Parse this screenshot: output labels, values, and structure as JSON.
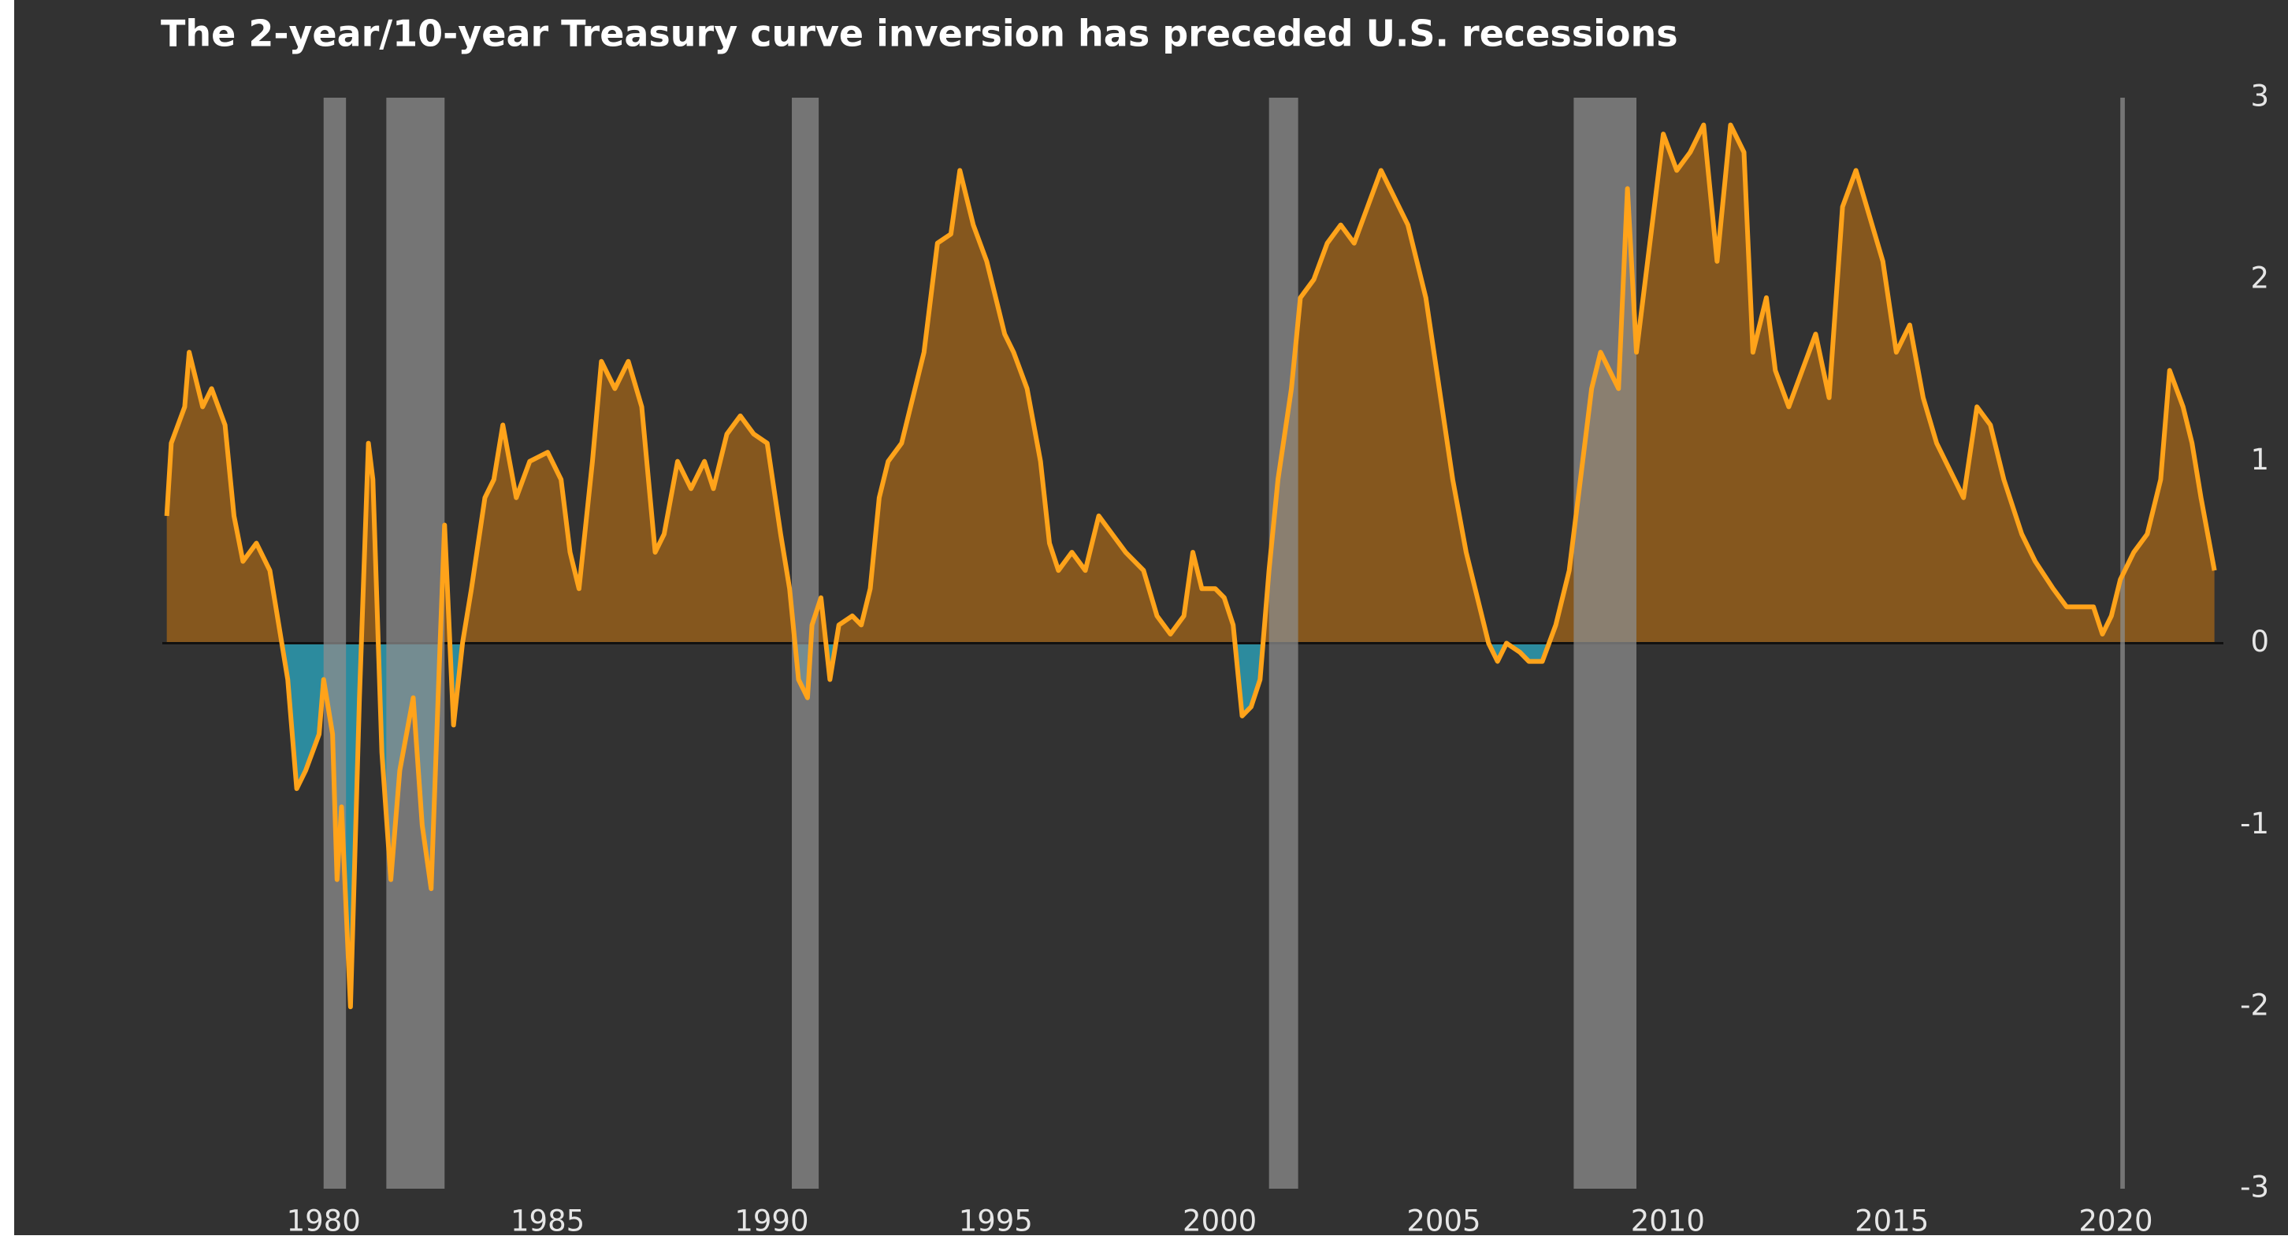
{
  "chart_data": {
    "type": "line",
    "title": "The 2-year/10-year Treasury curve inversion has preceded U.S. recessions",
    "x": [
      1976.5,
      1976.6,
      1976.9,
      1977.0,
      1977.3,
      1977.5,
      1977.8,
      1978.0,
      1978.2,
      1978.5,
      1978.8,
      1979.0,
      1979.2,
      1979.4,
      1979.6,
      1979.9,
      1980.0,
      1980.2,
      1980.3,
      1980.4,
      1980.6,
      1980.8,
      1981.0,
      1981.1,
      1981.3,
      1981.5,
      1981.7,
      1982.0,
      1982.2,
      1982.4,
      1982.6,
      1982.7,
      1982.9,
      1983.1,
      1983.3,
      1983.6,
      1983.8,
      1984.0,
      1984.3,
      1984.6,
      1985.0,
      1985.3,
      1985.5,
      1985.7,
      1986.0,
      1986.2,
      1986.5,
      1986.8,
      1987.1,
      1987.4,
      1987.6,
      1987.9,
      1988.2,
      1988.5,
      1988.7,
      1989.0,
      1989.3,
      1989.6,
      1989.9,
      1990.2,
      1990.4,
      1990.6,
      1990.8,
      1990.9,
      1991.1,
      1991.3,
      1991.5,
      1991.8,
      1992.0,
      1992.2,
      1992.4,
      1992.6,
      1992.9,
      1993.2,
      1993.4,
      1993.7,
      1994.0,
      1994.2,
      1994.5,
      1994.8,
      1995.2,
      1995.4,
      1995.7,
      1996.0,
      1996.2,
      1996.4,
      1996.7,
      1997.0,
      1997.3,
      1997.6,
      1997.9,
      1998.3,
      1998.6,
      1998.9,
      1999.2,
      1999.4,
      1999.6,
      1999.9,
      2000.1,
      2000.3,
      2000.5,
      2000.7,
      2000.9,
      2001.1,
      2001.3,
      2001.6,
      2001.8,
      2002.1,
      2002.4,
      2002.7,
      2003.0,
      2003.3,
      2003.6,
      2003.9,
      2004.2,
      2004.6,
      2004.9,
      2005.2,
      2005.5,
      2005.8,
      2006.0,
      2006.2,
      2006.4,
      2006.7,
      2006.9,
      2007.2,
      2007.5,
      2007.8,
      2008.1,
      2008.3,
      2008.5,
      2008.7,
      2008.9,
      2009.1,
      2009.3,
      2009.6,
      2009.9,
      2010.2,
      2010.5,
      2010.8,
      2011.1,
      2011.4,
      2011.7,
      2011.9,
      2012.2,
      2012.4,
      2012.7,
      2013.0,
      2013.3,
      2013.6,
      2013.9,
      2014.2,
      2014.5,
      2014.8,
      2015.1,
      2015.4,
      2015.7,
      2016.0,
      2016.3,
      2016.6,
      2016.9,
      2017.2,
      2017.5,
      2017.9,
      2018.2,
      2018.6,
      2018.9,
      2019.2,
      2019.5,
      2019.7,
      2019.9,
      2020.1,
      2020.4,
      2020.7,
      2021.0,
      2021.2,
      2021.5,
      2021.7,
      2021.9,
      2022.2
    ],
    "series": [
      {
        "color": "#ffa31a",
        "values": [
          0.7,
          1.1,
          1.3,
          1.6,
          1.3,
          1.4,
          1.2,
          0.7,
          0.45,
          0.55,
          0.4,
          0.1,
          -0.2,
          -0.8,
          -0.7,
          -0.5,
          -0.2,
          -0.5,
          -1.3,
          -0.9,
          -2.0,
          -0.3,
          1.1,
          0.9,
          -0.6,
          -1.3,
          -0.7,
          -0.3,
          -1.0,
          -1.35,
          0.0,
          0.65,
          -0.45,
          0.0,
          0.3,
          0.8,
          0.9,
          1.2,
          0.8,
          1.0,
          1.05,
          0.9,
          0.5,
          0.3,
          1.0,
          1.55,
          1.4,
          1.55,
          1.3,
          0.5,
          0.6,
          1.0,
          0.85,
          1.0,
          0.85,
          1.15,
          1.25,
          1.15,
          1.1,
          0.6,
          0.3,
          -0.2,
          -0.3,
          0.1,
          0.25,
          -0.2,
          0.1,
          0.15,
          0.1,
          0.3,
          0.8,
          1.0,
          1.1,
          1.4,
          1.6,
          2.2,
          2.25,
          2.6,
          2.3,
          2.1,
          1.7,
          1.6,
          1.4,
          1.0,
          0.55,
          0.4,
          0.5,
          0.4,
          0.7,
          0.6,
          0.5,
          0.4,
          0.15,
          0.05,
          0.15,
          0.5,
          0.3,
          0.3,
          0.25,
          0.1,
          -0.4,
          -0.35,
          -0.2,
          0.4,
          0.9,
          1.4,
          1.9,
          2.0,
          2.2,
          2.3,
          2.2,
          2.4,
          2.6,
          2.45,
          2.3,
          1.9,
          1.4,
          0.9,
          0.5,
          0.2,
          0.0,
          -0.1,
          0.0,
          -0.05,
          -0.1,
          -0.1,
          0.1,
          0.4,
          1.0,
          1.4,
          1.6,
          1.5,
          1.4,
          2.5,
          1.6,
          2.2,
          2.8,
          2.6,
          2.7,
          2.85,
          2.1,
          2.85,
          2.7,
          1.6,
          1.9,
          1.5,
          1.3,
          1.5,
          1.7,
          1.35,
          2.4,
          2.6,
          2.35,
          2.1,
          1.6,
          1.75,
          1.35,
          1.1,
          0.95,
          0.8,
          1.3,
          1.2,
          0.9,
          0.6,
          0.45,
          0.3,
          0.2,
          0.2,
          0.2,
          0.05,
          0.15,
          0.35,
          0.5,
          0.6,
          0.9,
          1.5,
          1.3,
          1.1,
          0.8,
          0.4
        ]
      }
    ],
    "positive_fill": "#8a5a1e",
    "negative_fill": "#2c8b9e",
    "recessions": [
      [
        1980.0,
        1980.5
      ],
      [
        1981.4,
        1982.7
      ],
      [
        1990.45,
        1991.05
      ],
      [
        2001.1,
        2001.75
      ],
      [
        2007.9,
        2009.3
      ],
      [
        2020.1,
        2020.2
      ]
    ],
    "recession_color": "#8c8c8c",
    "xlim": [
      1976.4,
      2022.4
    ],
    "xticks": [
      1980,
      1985,
      1990,
      1995,
      2000,
      2005,
      2010,
      2015,
      2020
    ],
    "ylim": [
      -3,
      3
    ],
    "yticks": [
      -3,
      -2,
      -1,
      0,
      1,
      2,
      3
    ]
  }
}
